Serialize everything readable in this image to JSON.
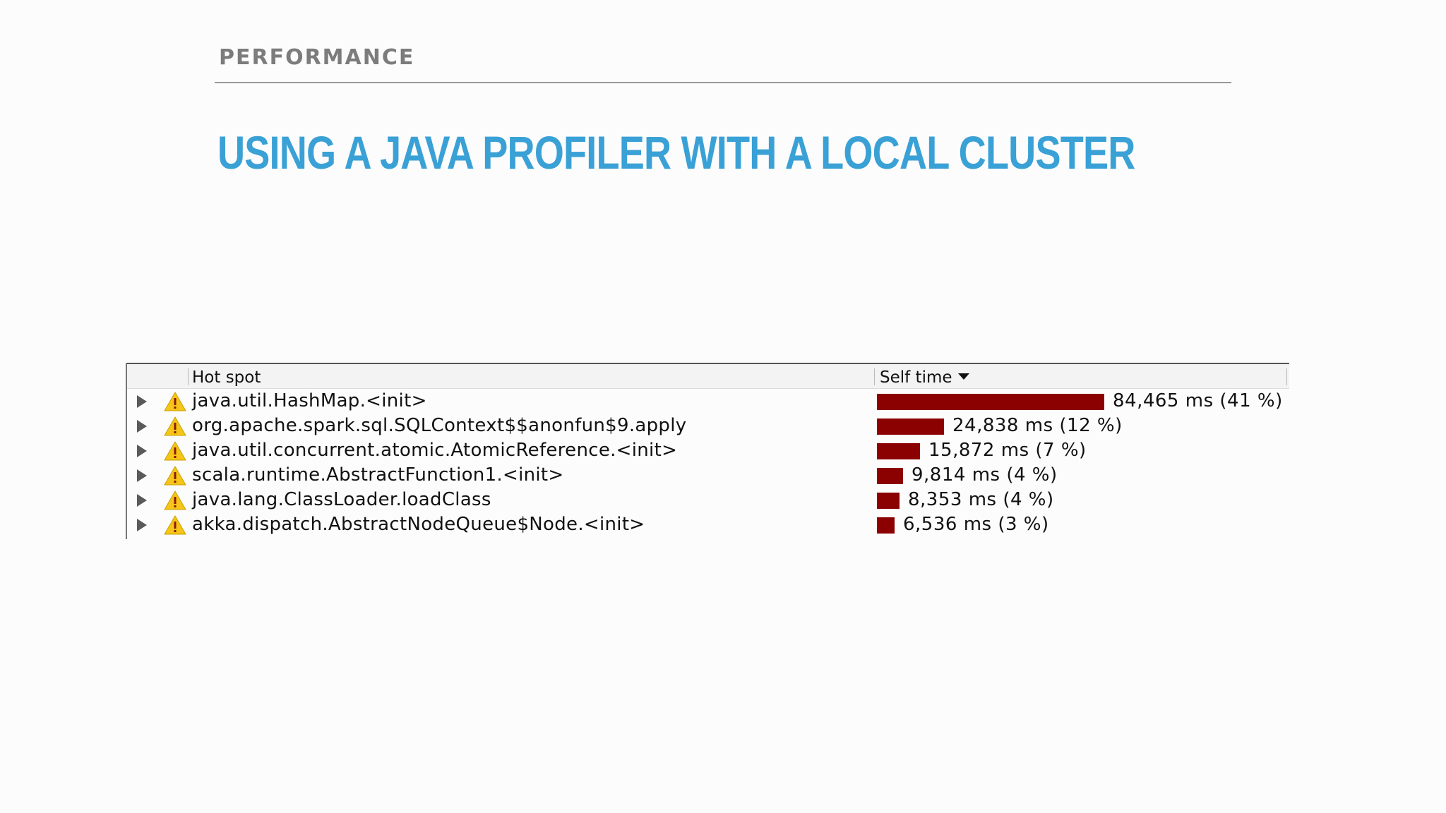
{
  "slide": {
    "section": "PERFORMANCE",
    "title": "USING A JAVA PROFILER WITH A LOCAL CLUSTER"
  },
  "profiler": {
    "columns": {
      "hot_spot": "Hot spot",
      "self_time": "Self time"
    },
    "sort_indicator_icon": "sort-descending-icon",
    "bar_color": "#8b0000",
    "rows": [
      {
        "method": "java.util.HashMap.<init>",
        "time": "84,465 ms (41 %)",
        "ms": 84465,
        "icon": "warning-icon"
      },
      {
        "method": "org.apache.spark.sql.SQLContext$$anonfun$9.apply",
        "time": "24,838 ms (12 %)",
        "ms": 24838,
        "icon": "warning-icon"
      },
      {
        "method": "java.util.concurrent.atomic.AtomicReference.<init>",
        "time": "15,872 ms (7 %)",
        "ms": 15872,
        "icon": "warning-icon"
      },
      {
        "method": "scala.runtime.AbstractFunction1.<init>",
        "time": "9,814 ms (4 %)",
        "ms": 9814,
        "icon": "warning-icon"
      },
      {
        "method": "java.lang.ClassLoader.loadClass",
        "time": "8,353 ms (4 %)",
        "ms": 8353,
        "icon": "warning-icon"
      },
      {
        "method": "akka.dispatch.AbstractNodeQueue$Node.<init>",
        "time": "6,536 ms (3 %)",
        "ms": 6536,
        "icon": "warning-icon"
      }
    ]
  }
}
